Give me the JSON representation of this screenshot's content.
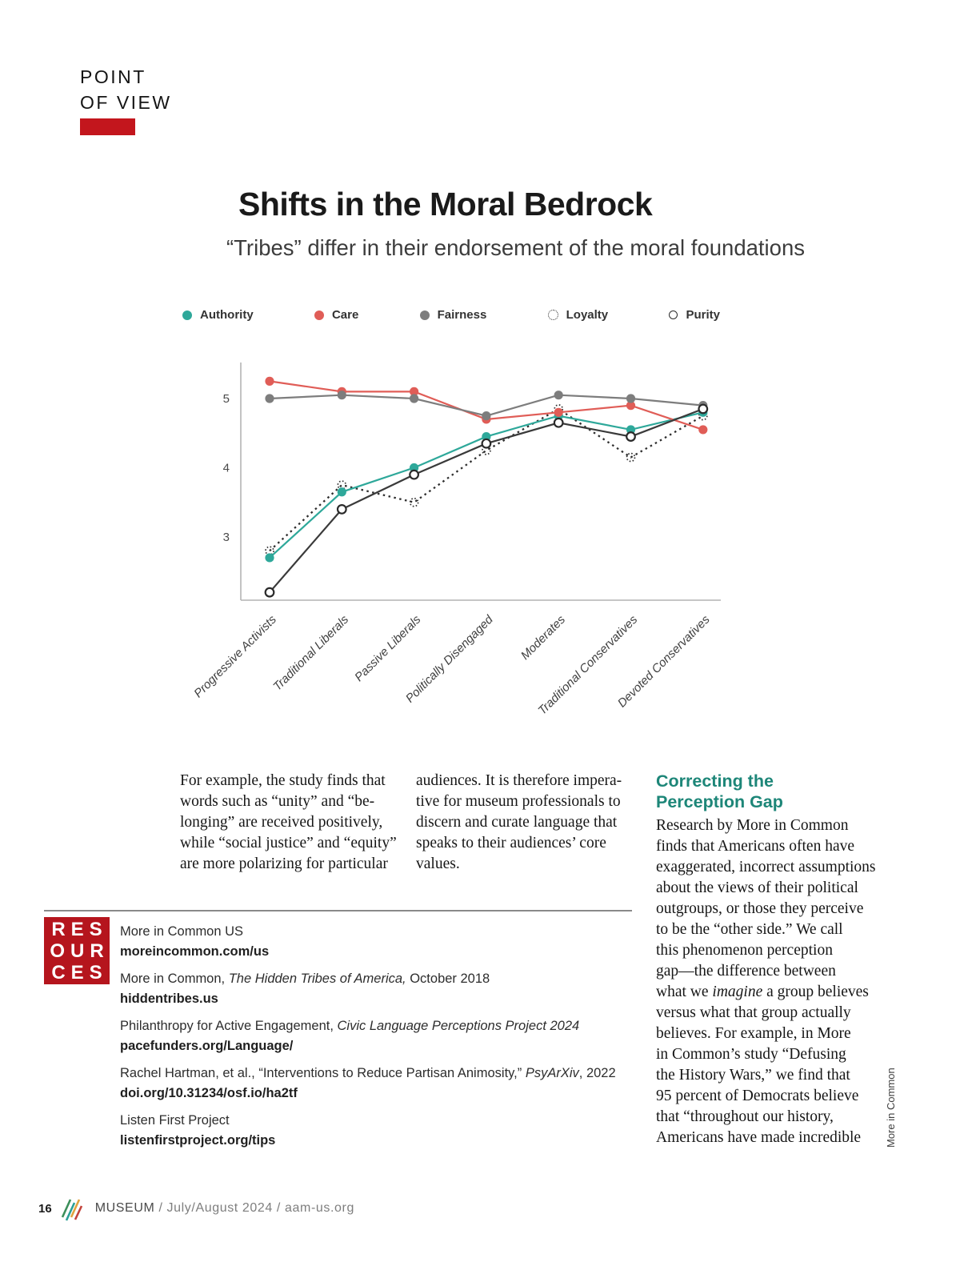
{
  "page": {
    "kicker_line1": "POINT",
    "kicker_line2": "OF VIEW",
    "title": "Shifts in the Moral Bedrock",
    "subtitle": "“Tribes” differ in their endorsement of the moral foundations"
  },
  "chart_data": {
    "type": "line",
    "title": "Shifts in the Moral Bedrock",
    "subtitle": "“Tribes” differ in their endorsement of the moral foundations",
    "categories": [
      "Progressive Activists",
      "Traditional Liberals",
      "Passive Liberals",
      "Politically Disengaged",
      "Moderates",
      "Traditional Conservatives",
      "Devoted Conservatives"
    ],
    "series": [
      {
        "name": "Authority",
        "marker": "filled-dot",
        "color": "#2ea89a",
        "values": [
          2.7,
          3.65,
          4.0,
          4.45,
          4.75,
          4.55,
          4.8
        ]
      },
      {
        "name": "Care",
        "marker": "filled-dot",
        "color": "#e05d57",
        "values": [
          5.25,
          5.1,
          5.1,
          4.7,
          4.8,
          4.9,
          4.55
        ]
      },
      {
        "name": "Fairness",
        "marker": "filled-dot",
        "color": "#7d7d7d",
        "values": [
          5.0,
          5.05,
          5.0,
          4.75,
          5.05,
          5.0,
          4.9
        ]
      },
      {
        "name": "Loyalty",
        "marker": "dotted-circle",
        "line_style": "dotted",
        "color": "#2e2e2e",
        "values": [
          2.8,
          3.75,
          3.5,
          4.25,
          4.85,
          4.15,
          4.75
        ]
      },
      {
        "name": "Purity",
        "marker": "open-circle",
        "color": "#3a3a3a",
        "values": [
          2.2,
          3.4,
          3.9,
          4.35,
          4.65,
          4.45,
          4.85
        ]
      }
    ],
    "yticks": [
      3,
      4,
      5
    ],
    "ylim": [
      2.05,
      5.5
    ],
    "grid": false,
    "legend_position": "top"
  },
  "columns": {
    "col1_lines": [
      "For example, the study finds that",
      "words such as “unity” and “be-",
      "longing” are received positively,",
      "while “social justice” and “equity”",
      "are more polarizing for particular"
    ],
    "col2_lines": [
      "audiences. It is therefore impera-",
      "tive for museum professionals to",
      "discern and curate language that",
      "speaks to their audiences’ core",
      "values."
    ],
    "col3_heading_line1": "Correcting the",
    "col3_heading_line2": "Perception Gap",
    "col3_lines_before": [
      "Research by More in Common",
      "finds that Americans often have",
      "exaggerated, incorrect assumptions",
      "about the views of their political",
      "outgroups, or those they perceive",
      "to be the “other side.” We call",
      "this phenomenon perception",
      "gap—the difference between"
    ],
    "col3_italic_line": {
      "before": "what we ",
      "italic": "imagine",
      "after": " a group believes"
    },
    "col3_lines_after": [
      "versus what that group actually",
      "believes. For example, in More",
      "in Common’s study “Defusing",
      "the History Wars,” we find that",
      "95 percent of Democrats believe",
      "that “throughout our history,",
      "Americans have made incredible"
    ]
  },
  "resources": {
    "box_lines": [
      "RES",
      "OUR",
      "CES"
    ],
    "items": [
      {
        "before": "More in Common US",
        "italic": "",
        "after": "",
        "link": "moreincommon.com/us"
      },
      {
        "before": "More in Common, ",
        "italic": "The Hidden Tribes of America,",
        "after": " October 2018",
        "link": "hiddentribes.us"
      },
      {
        "before": "Philanthropy for Active Engagement, ",
        "italic": "Civic Language Perceptions Project 2024",
        "after": "",
        "link": "pacefunders.org/Language/"
      },
      {
        "before": "Rachel Hartman, et al., “Interventions to Reduce Partisan Animosity,” ",
        "italic": "PsyArXiv",
        "after": ", 2022",
        "link": "doi.org/10.31234/osf.io/ha2tf"
      },
      {
        "before": "Listen First Project",
        "italic": "",
        "after": "",
        "link": "listenfirstproject.org/tips"
      }
    ]
  },
  "credit_vertical": "More in Common",
  "footer": {
    "page_number": "16",
    "magazine": "MUSEUM",
    "rest": " / July/August 2024 / aam-us.org"
  },
  "colors": {
    "kicker_bar_red": "#c3161d",
    "resources_box_red": "#b5151d",
    "heading_teal": "#1d8678",
    "axis_gray": "#b4b4b4",
    "logo_stripe_colors": [
      "#3c8f5a",
      "#2ba096",
      "#e0a33e",
      "#c2423a"
    ]
  }
}
